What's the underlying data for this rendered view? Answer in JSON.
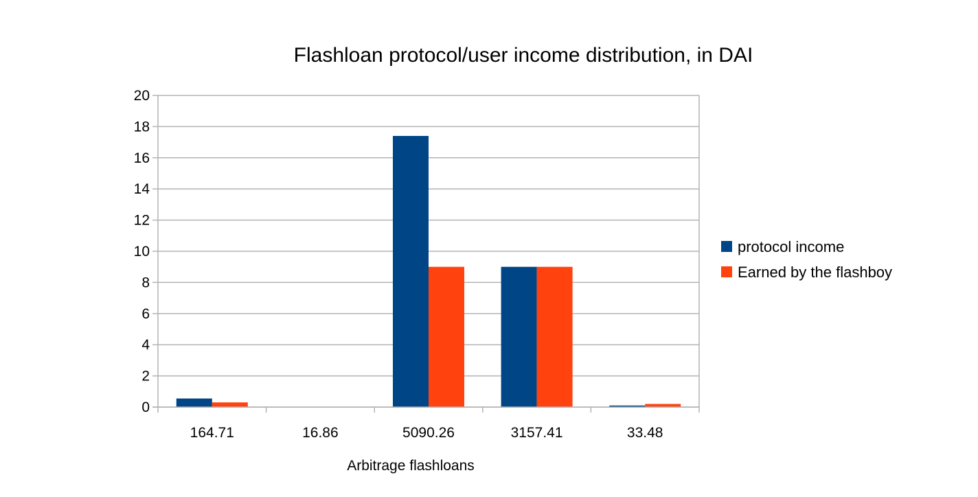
{
  "chart_data": {
    "type": "bar",
    "title": "Flashloan protocol/user income distribution, in DAI",
    "xlabel": "Arbitrage flashloans",
    "ylabel": "",
    "categories": [
      "164.71",
      "16.86",
      "5090.26",
      "3157.41",
      "33.48"
    ],
    "series": [
      {
        "name": "protocol income",
        "color": "#004586",
        "values": [
          0.55,
          0,
          17.4,
          9.0,
          0.1
        ]
      },
      {
        "name": "Earned by the flashboy",
        "color": "#ff420e",
        "values": [
          0.3,
          0,
          9.0,
          9.0,
          0.2
        ]
      }
    ],
    "ylim": [
      0,
      20
    ],
    "yticks": [
      0,
      2,
      4,
      6,
      8,
      10,
      12,
      14,
      16,
      18,
      20
    ],
    "grid": true,
    "legend_position": "right"
  }
}
